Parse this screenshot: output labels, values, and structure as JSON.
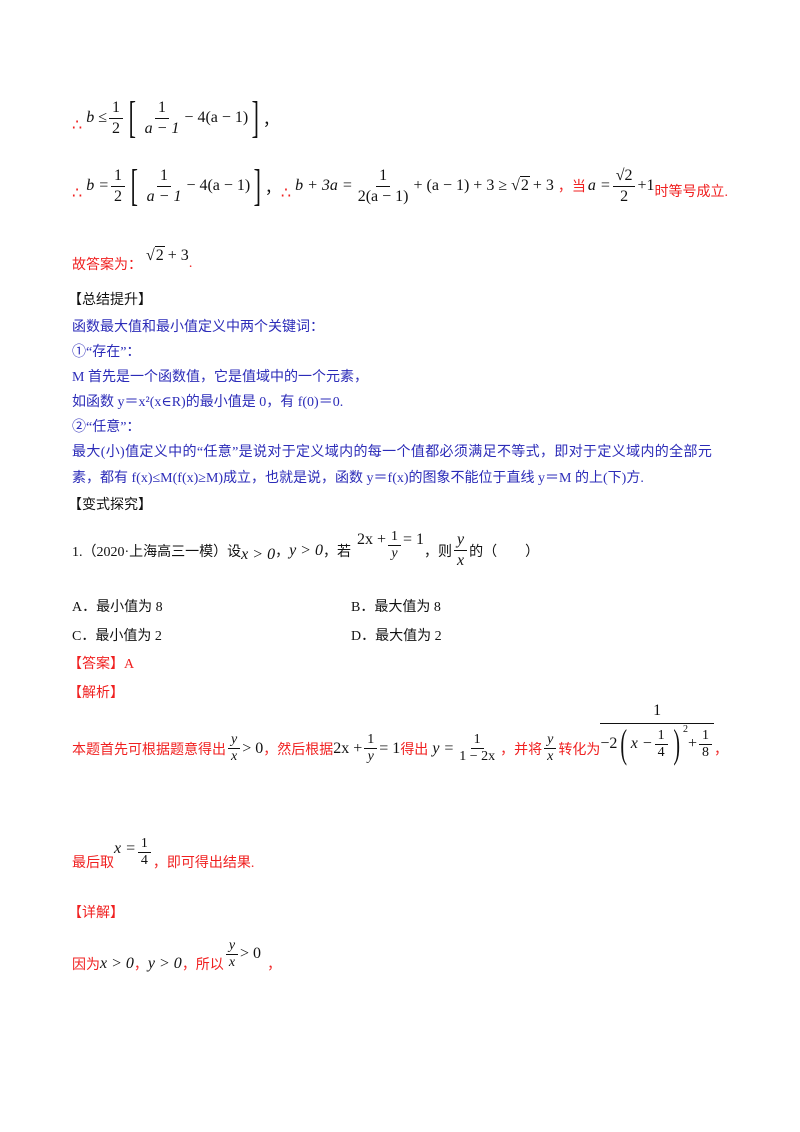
{
  "colors": {
    "red": "#f02020",
    "blue": "#2b2bb8",
    "text": "#111111"
  },
  "solution_top": {
    "line1": {
      "therefore": "∴",
      "lhs": "b ≤",
      "half_num": "1",
      "half_den": "2",
      "inner_num": "1",
      "inner_den": "a − 1",
      "inner_rest": "− 4(a − 1)",
      "tail": "，"
    },
    "line2": {
      "therefore": "∴",
      "lhs": "b =",
      "half_num": "1",
      "half_den": "2",
      "inner_num": "1",
      "inner_den": "a − 1",
      "inner_rest": "− 4(a − 1)",
      "sep": "，",
      "therefore2": "∴",
      "lhs2": "b + 3a =",
      "f_num": "1",
      "f_den": "2(a − 1)",
      "rest": "+ (a − 1) + 3 ≥",
      "sqrt2": "2",
      "plus3": "+ 3",
      "comma": "，",
      "when": "当",
      "a_eq": "a =",
      "a_num": "√2",
      "a_den": "2",
      "plus1": "+1",
      "tail": "时等号成立."
    },
    "line3": {
      "label": "故答案为：",
      "sqrt2": "2",
      "plus3": "+ 3",
      "tail": "."
    }
  },
  "summary": {
    "heading": "【总结提升】",
    "intro": "函数最大值和最小值定义中两个关键词：",
    "item1": "①“存在”：",
    "item1_line1": "M 首先是一个函数值，它是值域中的一个元素，",
    "item1_line2": "如函数 y＝x²(x∈R)的最小值是 0，有 f(0)＝0.",
    "item2": "②“任意”：",
    "item2_line1": "最大(小)值定义中的“任意”是说对于定义域内的每一个值都必须满足不等式，即对于定义域内的全部元",
    "item2_line2": "素，都有 f(x)≤M(f(x)≥M)成立，也就是说，函数 y＝f(x)的图象不能位于直线 y＝M 的上(下)方."
  },
  "variant": {
    "heading": "【变式探究】",
    "question": {
      "prefix": "1.（2020·上海高三一模）设",
      "c1": "x > 0",
      "s1": "，",
      "c2": "y > 0",
      "s2": "，若",
      "eq_lead": "2x +",
      "eq_num": "1",
      "eq_den": "y",
      "eq_tail": "= 1",
      "s3": "，则",
      "q_num": "y",
      "q_den": "x",
      "suffix": "的（　　）"
    },
    "options": [
      {
        "label": "A．最小值为 8"
      },
      {
        "label": "B．最大值为 8"
      },
      {
        "label": "C．最小值为 2"
      },
      {
        "label": "D．最大值为 2"
      }
    ],
    "answer_label": "【答案】A",
    "analysis_label": "【解析】",
    "analysis": {
      "t1": "本题首先可根据题意得出",
      "r_num": "y",
      "r_den": "x",
      "gt0": "> 0",
      "t2": "，然后根据",
      "eq_lead": "2x +",
      "eq_num": "1",
      "eq_den": "y",
      "eq_tail": "= 1",
      "t3": "得出",
      "y_eq": "y =",
      "y_num": "1",
      "y_den": "1 − 2x",
      "t4": "，并将",
      "r2_num": "y",
      "r2_den": "x",
      "t5": "转化为",
      "big_num": "1",
      "den_a": "−2",
      "den_x": "x −",
      "q_num": "1",
      "q_den": "4",
      "sq": "2",
      "den_plus": "+",
      "e_num": "1",
      "e_den": "8",
      "tail": "，"
    },
    "final": {
      "t1": "最后取",
      "x_eq": "x =",
      "num": "1",
      "den": "4",
      "t2": "，即可得出结果."
    },
    "detail_label": "【详解】",
    "detail": {
      "t1": "因为",
      "c1": "x > 0",
      "s1": "，",
      "c2": "y > 0",
      "t2": "，所以",
      "num": "y",
      "den": "x",
      "gt0": "> 0",
      "tail": "，"
    }
  }
}
